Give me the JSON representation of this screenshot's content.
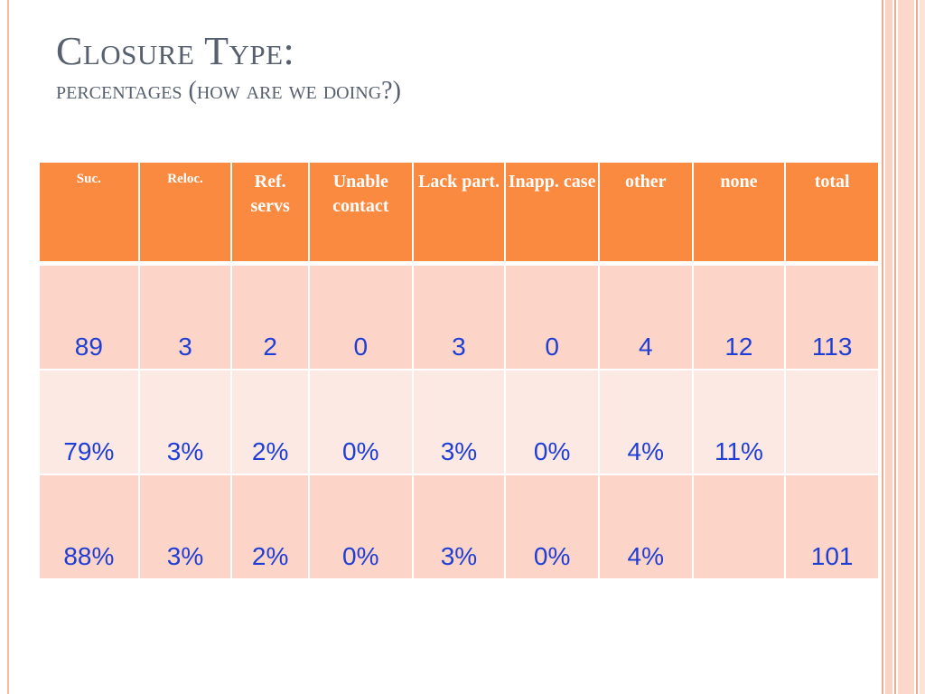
{
  "slide": {
    "title": "Closure Type:",
    "subtitle": "percentages (how are we doing?)"
  },
  "table": {
    "headers": [
      "Suc.",
      "Reloc.",
      "Ref. servs",
      "Unable contact",
      "Lack part.",
      "Inapp. case",
      "other",
      "none",
      "total"
    ],
    "rows": [
      [
        "89",
        "3",
        "2",
        "0",
        "3",
        "0",
        "4",
        "12",
        "113"
      ],
      [
        "79%",
        "3%",
        "2%",
        "0%",
        "3%",
        "0%",
        "4%",
        "11%",
        ""
      ],
      [
        "88%",
        "3%",
        "2%",
        "0%",
        "3%",
        "0%",
        "4%",
        "",
        "101"
      ]
    ]
  },
  "colors": {
    "header_bg": "#fb8a41",
    "row_dark": "#fcd5c8",
    "row_light": "#fde9e4",
    "value_text": "#1f3fd4",
    "title_text": "#57606e"
  }
}
